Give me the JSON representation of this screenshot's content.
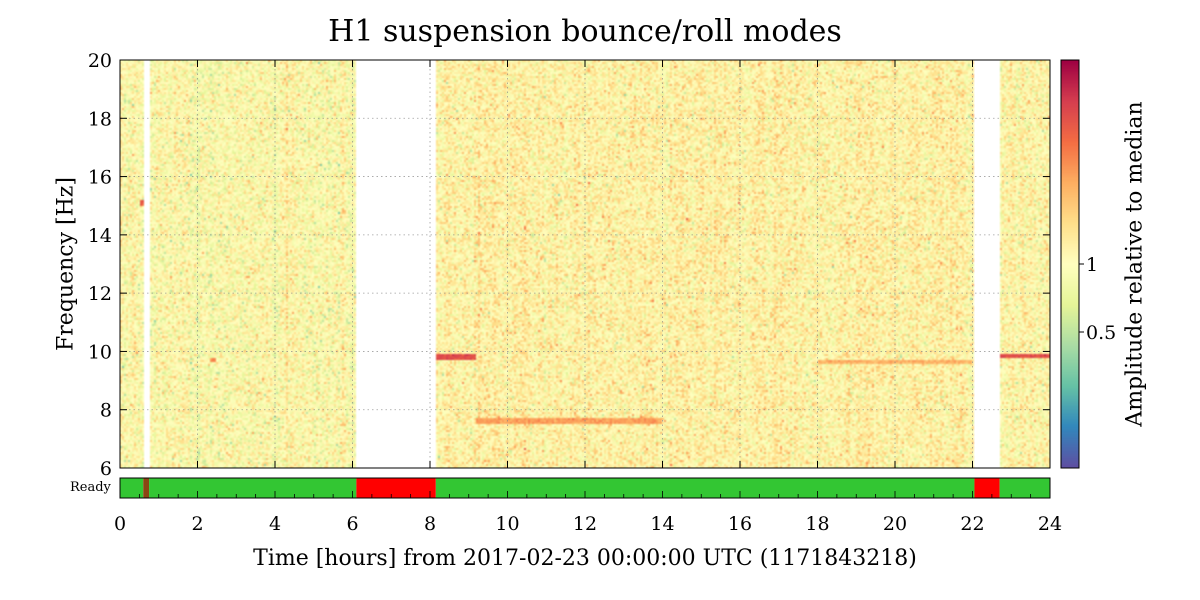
{
  "chart_data": {
    "type": "heatmap",
    "title": "H1 suspension bounce/roll modes",
    "xlabel": "Time [hours] from 2017-02-23 00:00:00 UTC (1171843218)",
    "ylabel": "Frequency [Hz]",
    "colorbar_label": "Amplitude relative to median",
    "colormap": "Spectral_r",
    "color_scale": "log",
    "xlim": [
      0,
      24
    ],
    "ylim": [
      6,
      20
    ],
    "xticks": [
      0,
      2,
      4,
      6,
      8,
      10,
      12,
      14,
      16,
      18,
      20,
      22,
      24
    ],
    "yticks": [
      6,
      8,
      10,
      12,
      14,
      16,
      18,
      20
    ],
    "colorbar_ticks": [
      {
        "label": "0.5",
        "value": 0.5
      },
      {
        "label": "1",
        "value": 1
      }
    ],
    "colorbar_range": [
      0.125,
      8
    ],
    "grid": true,
    "no_data_gaps": [
      [
        0.6,
        0.75
      ],
      [
        6.1,
        8.15
      ],
      [
        22.05,
        22.7
      ]
    ],
    "segments": [
      {
        "start": 0,
        "end": 8.15,
        "base_level": 1.0
      },
      {
        "start": 8.15,
        "end": 22.05,
        "base_level": 1.15
      }
    ],
    "lines": [
      {
        "freq": 9.8,
        "start": 8.15,
        "end": 9.2,
        "level": 4.5
      },
      {
        "freq": 9.85,
        "start": 22.7,
        "end": 24,
        "level": 4.5
      },
      {
        "freq": 15.1,
        "start": 0.5,
        "end": 0.6,
        "level": 4
      },
      {
        "freq": 7.6,
        "start": 9.2,
        "end": 14.0,
        "level": 2.5
      },
      {
        "freq": 9.65,
        "start": 18.0,
        "end": 22.0,
        "level": 2.2
      },
      {
        "freq": 9.7,
        "start": 2.3,
        "end": 2.5,
        "level": 3
      }
    ],
    "state_bar": {
      "label": "Ready",
      "segments": [
        {
          "start": 0,
          "end": 0.6,
          "state": "on"
        },
        {
          "start": 0.6,
          "end": 0.75,
          "state": "transition"
        },
        {
          "start": 0.75,
          "end": 6.1,
          "state": "on"
        },
        {
          "start": 6.1,
          "end": 8.15,
          "state": "off"
        },
        {
          "start": 8.15,
          "end": 22.05,
          "state": "on"
        },
        {
          "start": 22.05,
          "end": 22.7,
          "state": "off"
        },
        {
          "start": 22.7,
          "end": 24,
          "state": "on"
        }
      ],
      "colors": {
        "on": "#33c633",
        "off": "#ff0000",
        "transition": "#8b4513"
      }
    }
  }
}
